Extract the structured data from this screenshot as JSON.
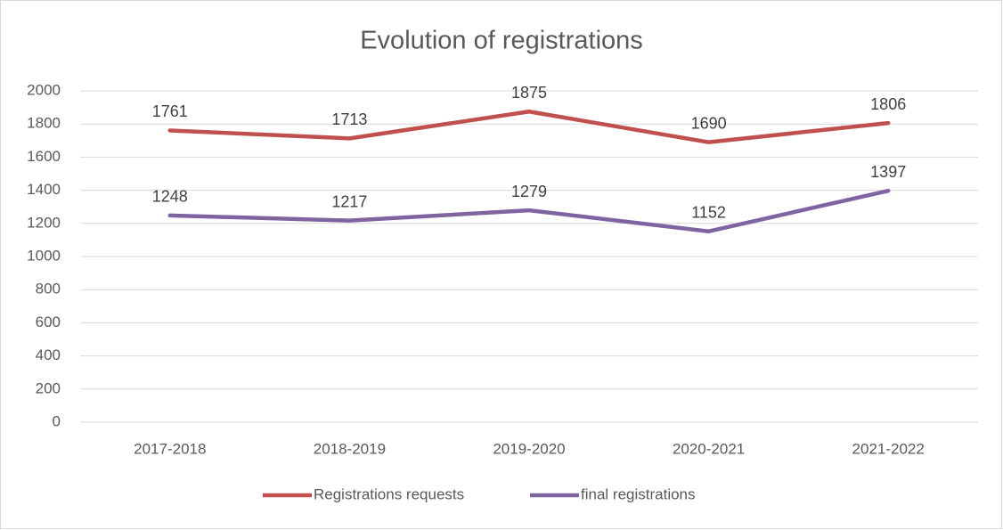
{
  "chart_data": {
    "type": "line",
    "title": "Evolution of registrations",
    "categories": [
      "2017-2018",
      "2018-2019",
      "2019-2020",
      "2020-2021",
      "2021-2022"
    ],
    "series": [
      {
        "name": "Registrations requests",
        "color": "#c0504d",
        "values": [
          1761,
          1713,
          1875,
          1690,
          1806
        ]
      },
      {
        "name": "final registrations",
        "color": "#8064a2",
        "values": [
          1248,
          1217,
          1279,
          1152,
          1397
        ]
      }
    ],
    "ylim": [
      0,
      2000
    ],
    "yticks": [
      0,
      200,
      400,
      600,
      800,
      1000,
      1200,
      1400,
      1600,
      1800,
      2000
    ],
    "grid": true,
    "legend": "bottom"
  }
}
